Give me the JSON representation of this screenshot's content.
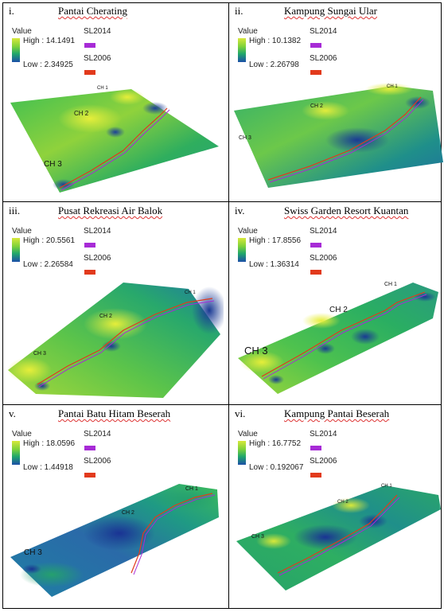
{
  "panels": [
    {
      "num": "i.",
      "name": "Pantai Cherating",
      "value_label": "Value",
      "high": "High : 14.1491",
      "low": "Low : 2.34925",
      "sl2014": "SL2014",
      "sl2006": "SL2006",
      "ch1": "CH 1",
      "ch2": "CH 2",
      "ch3": "CH 3"
    },
    {
      "num": "ii.",
      "name": "Kampung Sungai Ular",
      "value_label": "Value",
      "high": "High : 10.1382",
      "low": "Low : 2.26798",
      "sl2014": "SL2014",
      "sl2006": "SL2006",
      "ch1": "CH 1",
      "ch2": "CH 2",
      "ch3": "CH 3"
    },
    {
      "num": "iii.",
      "name": "Pusat Rekreasi Air Balok",
      "value_label": "Value",
      "high": "High : 20.5561",
      "low": "Low : 2.26584",
      "sl2014": "SL2014",
      "sl2006": "SL2006",
      "ch1": "CH 1",
      "ch2": "CH 2",
      "ch3": "CH 3"
    },
    {
      "num": "iv.",
      "name": "Swiss Garden Resort Kuantan",
      "value_label": "Value",
      "high": "High : 17.8556",
      "low": "Low : 1.36314",
      "sl2014": "SL2014",
      "sl2006": "SL2006",
      "ch1": "CH 1",
      "ch2": "CH 2",
      "ch3": "CH 3"
    },
    {
      "num": "v.",
      "name": "Pantai Batu Hitam Beserah",
      "value_label": "Value",
      "high": "High : 18.0596",
      "low": "Low : 1.44918",
      "sl2014": "SL2014",
      "sl2006": "SL2006",
      "ch1": "CH 1",
      "ch2": "CH 2",
      "ch3": "CH 3"
    },
    {
      "num": "vi.",
      "name": "Kampung Pantai Beserah",
      "value_label": "Value",
      "high": "High : 16.7752",
      "low": "Low : 0.192067",
      "sl2014": "SL2014",
      "sl2006": "SL2006",
      "ch1": "CH 1",
      "ch2": "CH 2",
      "ch3": "CH 3"
    }
  ],
  "colors": {
    "sl2014": "#a72bd6",
    "sl2006": "#e23a1c",
    "ramp_high": "#d8e83a",
    "ramp_mid": "#21a86a",
    "ramp_low": "#1c4fa8"
  }
}
